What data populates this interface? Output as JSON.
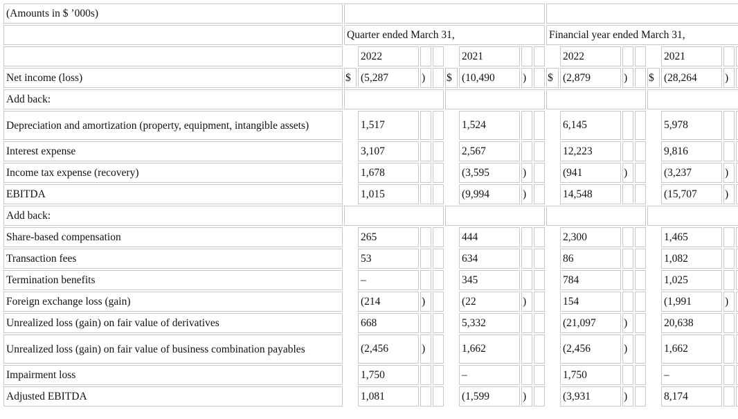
{
  "title": "(Amounts in $ ’000s)",
  "headers": {
    "quarter": "Quarter ended March 31,",
    "financial_year": "Financial year ended March 31,",
    "years": [
      "2022",
      "2021",
      "2022",
      "2021"
    ]
  },
  "rows": [
    {
      "label": "Net income (loss)",
      "type": "data",
      "cells": [
        {
          "cur": "$",
          "v": "(5,287",
          "p": ")"
        },
        {
          "cur": "$",
          "v": "(10,490",
          "p": ")"
        },
        {
          "cur": "$",
          "v": "(2,879",
          "p": ")"
        },
        {
          "cur": "$",
          "v": "(28,264",
          "p": ")"
        }
      ]
    },
    {
      "label": "Add back:",
      "type": "section"
    },
    {
      "label": "Depreciation and amortization (property, equipment, intangible assets)",
      "type": "data",
      "tall": true,
      "cells": [
        {
          "v": "1,517"
        },
        {
          "v": "1,524"
        },
        {
          "v": "6,145"
        },
        {
          "v": "5,978"
        }
      ]
    },
    {
      "label": "Interest expense",
      "type": "data",
      "cells": [
        {
          "v": "3,107"
        },
        {
          "v": "2,567"
        },
        {
          "v": "12,223"
        },
        {
          "v": "9,816"
        }
      ]
    },
    {
      "label": "Income tax expense (recovery)",
      "type": "data",
      "cells": [
        {
          "v": "1,678"
        },
        {
          "v": "(3,595",
          "p": ")"
        },
        {
          "v": "(941",
          "p": ")"
        },
        {
          "v": "(3,237",
          "p": ")"
        }
      ]
    },
    {
      "label": "EBITDA",
      "type": "data",
      "cells": [
        {
          "v": "1,015"
        },
        {
          "v": "(9,994",
          "p": ")"
        },
        {
          "v": "14,548"
        },
        {
          "v": "(15,707",
          "p": ")"
        }
      ]
    },
    {
      "label": "Add back:",
      "type": "section"
    },
    {
      "label": "Share-based compensation",
      "type": "data",
      "cells": [
        {
          "v": "265"
        },
        {
          "v": "444"
        },
        {
          "v": "2,300"
        },
        {
          "v": "1,465"
        }
      ]
    },
    {
      "label": "Transaction fees",
      "type": "data",
      "cells": [
        {
          "v": "53"
        },
        {
          "v": "634"
        },
        {
          "v": "86"
        },
        {
          "v": "1,082"
        }
      ]
    },
    {
      "label": "Termination benefits",
      "type": "data",
      "cells": [
        {
          "v": "–"
        },
        {
          "v": "345"
        },
        {
          "v": "784"
        },
        {
          "v": "1,025"
        }
      ]
    },
    {
      "label": "Foreign exchange loss (gain)",
      "type": "data",
      "cells": [
        {
          "v": "(214",
          "p": ")"
        },
        {
          "v": "(22",
          "p": ")"
        },
        {
          "v": "154"
        },
        {
          "v": "(1,991",
          "p": ")"
        }
      ]
    },
    {
      "label": "Unrealized loss (gain) on fair value of derivatives",
      "type": "data",
      "cells": [
        {
          "v": "668"
        },
        {
          "v": "5,332"
        },
        {
          "v": "(21,097",
          "p": ")"
        },
        {
          "v": "20,638"
        }
      ]
    },
    {
      "label": "Unrealized loss (gain) on fair value of business combination payables",
      "type": "data",
      "tall": true,
      "cells": [
        {
          "v": "(2,456",
          "p": ")"
        },
        {
          "v": "1,662"
        },
        {
          "v": "(2,456",
          "p": ")"
        },
        {
          "v": "1,662"
        }
      ]
    },
    {
      "label": "Impairment loss",
      "type": "data",
      "cells": [
        {
          "v": "1,750"
        },
        {
          "v": "–"
        },
        {
          "v": "1,750"
        },
        {
          "v": "–"
        }
      ]
    },
    {
      "label": "Adjusted EBITDA",
      "type": "data",
      "cells": [
        {
          "v": "1,081"
        },
        {
          "v": "(1,599",
          "p": ")"
        },
        {
          "v": "(3,931",
          "p": ")"
        },
        {
          "v": "8,174"
        }
      ]
    }
  ]
}
